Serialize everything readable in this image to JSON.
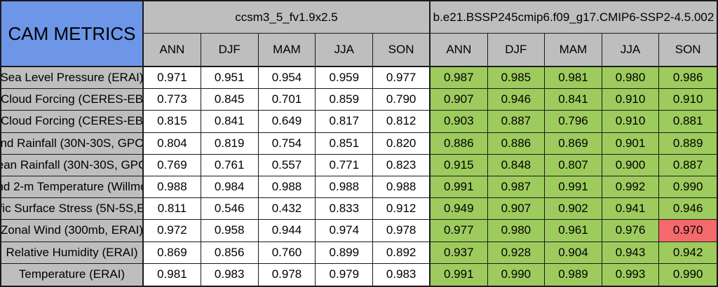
{
  "sheet": {
    "title": "CAM METRICS",
    "models": [
      {
        "name": "ccsm3_5_fv1.9x2.5",
        "seasons": [
          "ANN",
          "DJF",
          "MAM",
          "JJA",
          "SON"
        ]
      },
      {
        "name": "b.e21.BSSP245cmip6.f09_g17.CMIP6-SSP2-4.5.002",
        "seasons": [
          "ANN",
          "DJF",
          "MAM",
          "JJA",
          "SON"
        ]
      }
    ],
    "rows": [
      {
        "label": "Sea Level Pressure (ERAI)",
        "model1": [
          "0.971",
          "0.951",
          "0.954",
          "0.959",
          "0.977"
        ],
        "model2": [
          "0.987",
          "0.985",
          "0.981",
          "0.980",
          "0.986"
        ]
      },
      {
        "label": "Cloud Forcing (CERES-EB",
        "model1": [
          "0.773",
          "0.845",
          "0.701",
          "0.859",
          "0.790"
        ],
        "model2": [
          "0.907",
          "0.946",
          "0.841",
          "0.910",
          "0.910"
        ]
      },
      {
        "label": "Cloud Forcing (CERES-EB",
        "model1": [
          "0.815",
          "0.841",
          "0.649",
          "0.817",
          "0.812"
        ],
        "model2": [
          "0.903",
          "0.887",
          "0.796",
          "0.910",
          "0.881"
        ]
      },
      {
        "label": "nd Rainfall (30N-30S, GPC",
        "model1": [
          "0.804",
          "0.819",
          "0.754",
          "0.851",
          "0.820"
        ],
        "model2": [
          "0.886",
          "0.886",
          "0.869",
          "0.901",
          "0.889"
        ]
      },
      {
        "label": "ean Rainfall (30N-30S, GPC",
        "model1": [
          "0.769",
          "0.761",
          "0.557",
          "0.771",
          "0.823"
        ],
        "model2": [
          "0.915",
          "0.848",
          "0.807",
          "0.900",
          "0.887"
        ]
      },
      {
        "label": "nd 2-m Temperature (Willmo",
        "model1": [
          "0.988",
          "0.984",
          "0.988",
          "0.988",
          "0.988"
        ],
        "model2": [
          "0.991",
          "0.987",
          "0.991",
          "0.992",
          "0.990"
        ]
      },
      {
        "label": "fic Surface Stress (5N-5S,E",
        "model1": [
          "0.811",
          "0.546",
          "0.432",
          "0.833",
          "0.912"
        ],
        "model2": [
          "0.949",
          "0.907",
          "0.902",
          "0.941",
          "0.946"
        ]
      },
      {
        "label": "Zonal Wind (300mb, ERAI)",
        "model1": [
          "0.972",
          "0.958",
          "0.944",
          "0.974",
          "0.978"
        ],
        "model2": [
          "0.977",
          "0.980",
          "0.961",
          "0.976",
          "0.970"
        ],
        "alert_season": "SON"
      },
      {
        "label": "Relative Humidity (ERAI)",
        "model1": [
          "0.869",
          "0.856",
          "0.760",
          "0.899",
          "0.892"
        ],
        "model2": [
          "0.937",
          "0.928",
          "0.904",
          "0.943",
          "0.942"
        ]
      },
      {
        "label": "Temperature (ERAI)",
        "model1": [
          "0.981",
          "0.983",
          "0.978",
          "0.979",
          "0.983"
        ],
        "model2": [
          "0.991",
          "0.990",
          "0.989",
          "0.993",
          "0.990"
        ]
      }
    ],
    "colors": {
      "title_bg": "#6d96e8",
      "header_bg": "#bebebe",
      "label_bg": "#bebebe",
      "good_bg": "#9ecb5d",
      "alert_bg": "#f4696b",
      "grid_line": "#1a1a1a"
    }
  }
}
